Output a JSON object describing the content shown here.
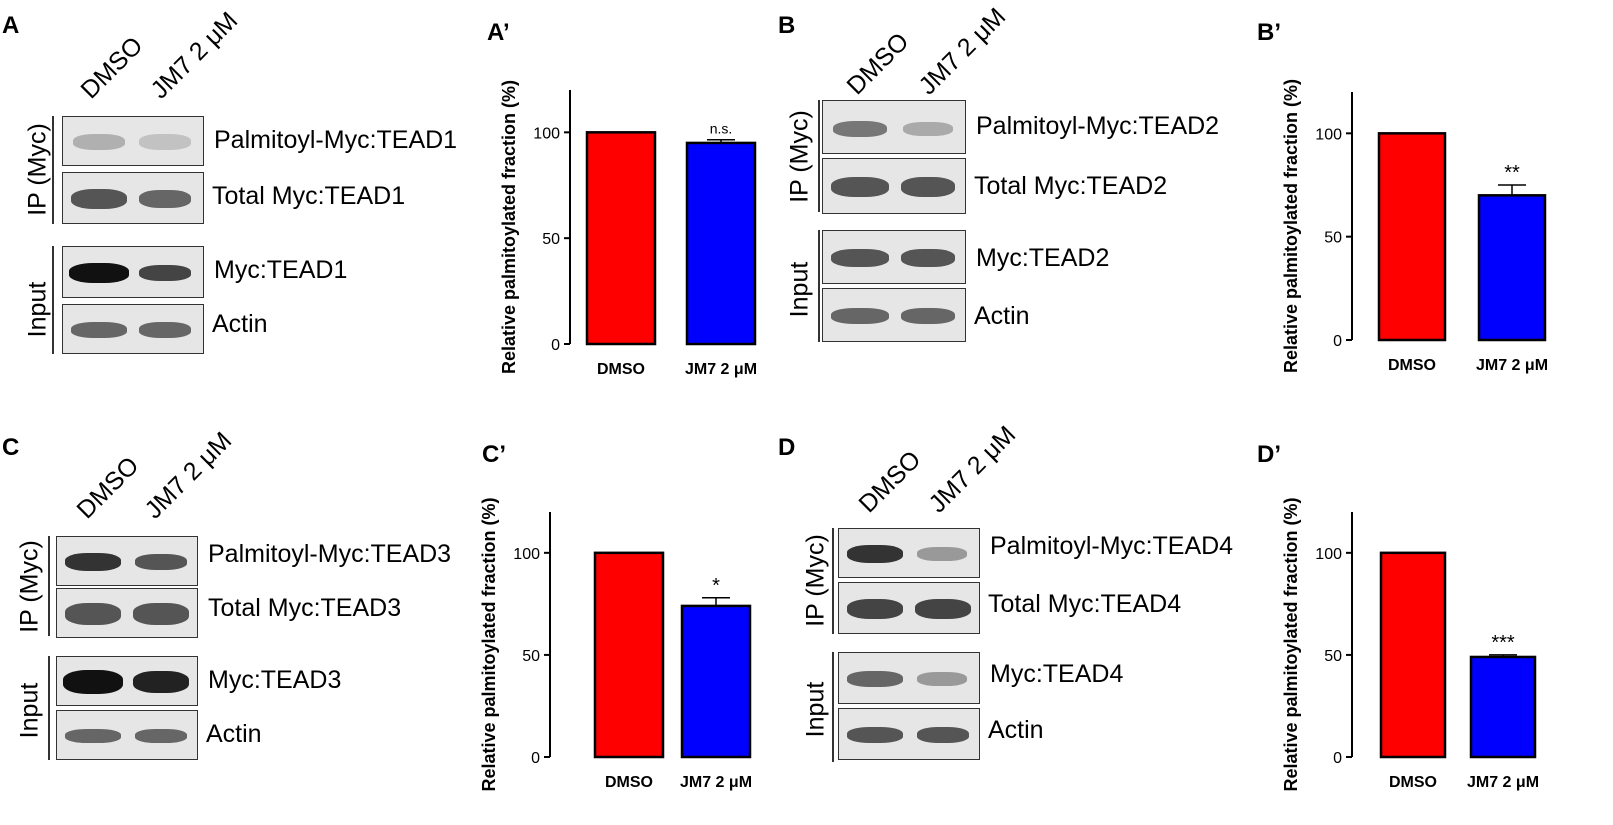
{
  "colors": {
    "dmso": "#ff0000",
    "jm7": "#0000ff"
  },
  "blots": [
    {
      "letter": "A",
      "lanes": [
        "DMSO",
        "JM7 2 μM"
      ],
      "groups": [
        "IP (Myc)",
        "Input"
      ],
      "bands": [
        "Palmitoyl-Myc:TEAD1",
        "Total Myc:TEAD1",
        "Myc:TEAD1",
        "Actin"
      ]
    },
    {
      "letter": "B",
      "lanes": [
        "DMSO",
        "JM7 2 μM"
      ],
      "groups": [
        "IP (Myc)",
        "Input"
      ],
      "bands": [
        "Palmitoyl-Myc:TEAD2",
        "Total Myc:TEAD2",
        "Myc:TEAD2",
        "Actin"
      ]
    },
    {
      "letter": "C",
      "lanes": [
        "DMSO",
        "JM7 2 μM"
      ],
      "groups": [
        "IP (Myc)",
        "Input"
      ],
      "bands": [
        "Palmitoyl-Myc:TEAD3",
        "Total Myc:TEAD3",
        "Myc:TEAD3",
        "Actin"
      ]
    },
    {
      "letter": "D",
      "lanes": [
        "DMSO",
        "JM7 2 μM"
      ],
      "groups": [
        "IP (Myc)",
        "Input"
      ],
      "bands": [
        "Palmitoyl-Myc:TEAD4",
        "Total Myc:TEAD4",
        "Myc:TEAD4",
        "Actin"
      ]
    }
  ],
  "chart_data": [
    {
      "letter": "A’",
      "type": "bar",
      "categories": [
        "DMSO",
        "JM7 2 μM"
      ],
      "values": [
        100,
        95
      ],
      "errors": [
        0,
        1.5
      ],
      "significance": "n.s.",
      "ylabel": "Relative palmitoylated fraction (%)",
      "ylim": [
        0,
        120
      ],
      "yticks": [
        0,
        50,
        100
      ]
    },
    {
      "letter": "B’",
      "type": "bar",
      "categories": [
        "DMSO",
        "JM7 2 μM"
      ],
      "values": [
        100,
        70
      ],
      "errors": [
        0,
        5
      ],
      "significance": "**",
      "ylabel": "Relative palmitoylated fraction (%)",
      "ylim": [
        0,
        120
      ],
      "yticks": [
        0,
        50,
        100
      ]
    },
    {
      "letter": "C’",
      "type": "bar",
      "categories": [
        "DMSO",
        "JM7 2 μM"
      ],
      "values": [
        100,
        74
      ],
      "errors": [
        0,
        4
      ],
      "significance": "*",
      "ylabel": "Relative palmitoylated fraction (%)",
      "ylim": [
        0,
        120
      ],
      "yticks": [
        0,
        50,
        100
      ]
    },
    {
      "letter": "D’",
      "type": "bar",
      "categories": [
        "DMSO",
        "JM7 2 μM"
      ],
      "values": [
        100,
        49
      ],
      "errors": [
        0,
        1
      ],
      "significance": "***",
      "ylabel": "Relative palmitoylated fraction (%)",
      "ylim": [
        0,
        120
      ],
      "yticks": [
        0,
        50,
        100
      ]
    }
  ]
}
